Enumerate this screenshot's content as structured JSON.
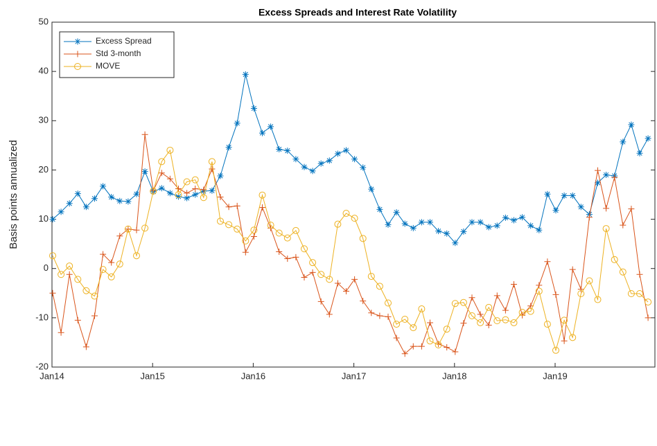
{
  "chart_data": {
    "type": "line",
    "title": "Excess Spreads and Interest Rate Volatility",
    "ylabel": "Basis points annualized",
    "categories": [
      "Jan14",
      null,
      null,
      null,
      null,
      null,
      null,
      null,
      null,
      null,
      null,
      null,
      "Jan15",
      null,
      null,
      null,
      null,
      null,
      null,
      null,
      null,
      null,
      null,
      null,
      "Jan16",
      null,
      null,
      null,
      null,
      null,
      null,
      null,
      null,
      null,
      null,
      null,
      "Jan17",
      null,
      null,
      null,
      null,
      null,
      null,
      null,
      null,
      null,
      null,
      null,
      "Jan18",
      null,
      null,
      null,
      null,
      null,
      null,
      null,
      null,
      null,
      null,
      null,
      "Jan19",
      null,
      null,
      null,
      null,
      null,
      null,
      null,
      null,
      null,
      null,
      null
    ],
    "ylim": [
      -20,
      50
    ],
    "yticks": [
      -20,
      -10,
      0,
      10,
      20,
      30,
      40,
      50
    ],
    "grid": false,
    "legend": "upper left",
    "series": [
      {
        "name": "Excess Spread",
        "color": "#0072BD",
        "marker": "asterisk",
        "values": [
          10,
          11.5,
          13.2,
          15.2,
          12.5,
          14.2,
          16.7,
          14.5,
          13.7,
          13.6,
          15.1,
          19.7,
          15.6,
          16.3,
          15.3,
          14.6,
          14.3,
          15,
          15.7,
          15.8,
          18.8,
          24.6,
          29.5,
          39.4,
          32.5,
          27.5,
          28.8,
          24.2,
          23.9,
          22.2,
          20.6,
          19.8,
          21.3,
          21.9,
          23.3,
          24,
          22.2,
          20.5,
          16.1,
          12,
          8.9,
          11.4,
          9.1,
          8.2,
          9.4,
          9.4,
          7.6,
          7.1,
          5.2,
          7.5,
          9.4,
          9.4,
          8.4,
          8.7,
          10.3,
          9.8,
          10.4,
          8.7,
          7.8,
          15.1,
          11.8,
          14.8,
          14.8,
          12.5,
          11,
          17.4,
          19,
          18.8,
          25.7,
          29.2,
          23.4,
          26.4
        ]
      },
      {
        "name": "Std 3-month",
        "color": "#D95319",
        "marker": "plus",
        "values": [
          -5,
          -13,
          -1.2,
          -10.5,
          -15.9,
          -9.6,
          2.9,
          1.2,
          6.6,
          8,
          7.8,
          27.2,
          15.8,
          19.4,
          18.2,
          16.2,
          15.3,
          16.2,
          16,
          20.2,
          14.5,
          12.5,
          12.7,
          3.3,
          6.5,
          12.4,
          8.2,
          3.4,
          2,
          2.3,
          -1.8,
          -0.8,
          -6.7,
          -9.3,
          -3,
          -4.6,
          -2.2,
          -6.6,
          -9,
          -9.6,
          -9.8,
          -14.1,
          -17.3,
          -15.8,
          -15.8,
          -11,
          -15.3,
          -16,
          -16.9,
          -11.1,
          -5.9,
          -9.3,
          -11.5,
          -5.5,
          -8.5,
          -3.2,
          -9.5,
          -7.6,
          -3.4,
          1.4,
          -5.3,
          -14.7,
          -0.2,
          -4.2,
          10.4,
          19.9,
          12.2,
          18.5,
          8.8,
          12.1,
          -1.2,
          -10
        ]
      },
      {
        "name": "MOVE",
        "color": "#EDB120",
        "marker": "circle",
        "values": [
          2.6,
          -1.2,
          0.5,
          -2.2,
          -4.5,
          -5.6,
          -0.2,
          -1.7,
          0.9,
          8,
          2.6,
          8.2,
          15.7,
          21.7,
          24,
          15,
          17.6,
          18,
          14.4,
          21.7,
          9.6,
          8.9,
          8,
          5.6,
          7.8,
          14.9,
          8.8,
          7.2,
          6.2,
          7.7,
          4,
          1.2,
          -1.2,
          -2.2,
          9,
          11.2,
          10.2,
          6.1,
          -1.6,
          -3.6,
          -7,
          -11.3,
          -10.3,
          -12,
          -8.2,
          -14.7,
          -15.5,
          -12.3,
          -7.1,
          -6.9,
          -9.6,
          -11,
          -7.9,
          -10.6,
          -10.4,
          -11,
          -8.9,
          -8.7,
          -4.6,
          -11.3,
          -16.6,
          -10.5,
          -14,
          -5.1,
          -2.5,
          -6.3,
          8.1,
          1.8,
          -0.7,
          -5.1,
          -5.1,
          -6.8
        ]
      }
    ]
  }
}
